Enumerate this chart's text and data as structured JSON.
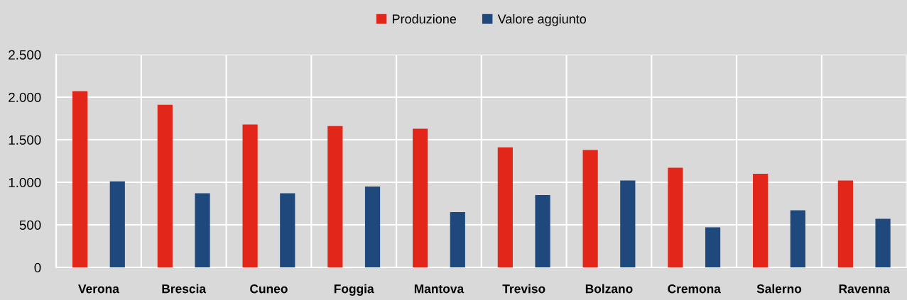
{
  "chart_data": {
    "type": "bar",
    "categories": [
      "Verona",
      "Brescia",
      "Cuneo",
      "Foggia",
      "Mantova",
      "Treviso",
      "Bolzano",
      "Cremona",
      "Salerno",
      "Ravenna"
    ],
    "series": [
      {
        "name": "Produzione",
        "color": "#e3261a",
        "values": [
          2070,
          1910,
          1680,
          1660,
          1630,
          1410,
          1380,
          1170,
          1100,
          1020
        ]
      },
      {
        "name": "Valore aggiunto",
        "color": "#1f497d",
        "values": [
          1010,
          870,
          870,
          950,
          650,
          850,
          1020,
          470,
          670,
          570
        ]
      }
    ],
    "ylim": [
      0,
      2500
    ],
    "yticks": [
      0,
      500,
      {
        "value": 1000,
        "label": "1.000"
      },
      {
        "value": 1500,
        "label": "1.500"
      },
      {
        "value": 2000,
        "label": "2.000"
      },
      {
        "value": 2500,
        "label": "2.500"
      }
    ],
    "grid": true,
    "legend": "top"
  }
}
